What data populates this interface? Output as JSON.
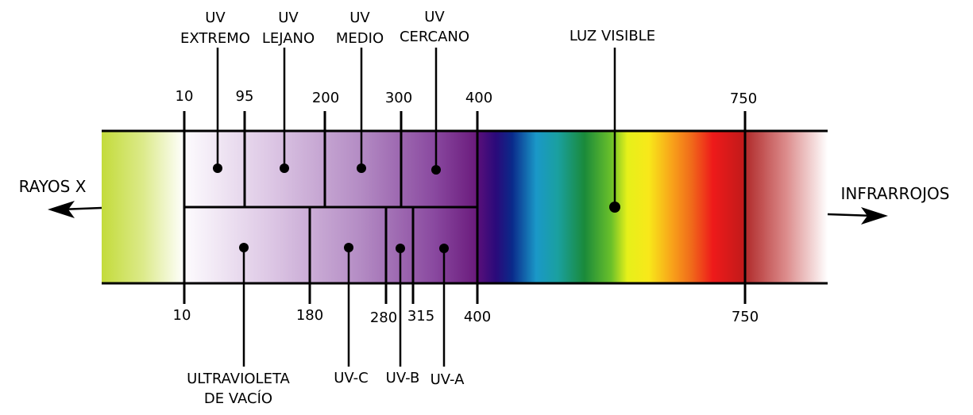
{
  "colors": {
    "xray": "#c4dc3c",
    "uv_start": "#fbf8fc",
    "uv_end": "#6a1a7e",
    "infrared": "#b22222"
  },
  "left_label": "RAYOS X",
  "right_label": "INFRARROJOS",
  "top_bands": [
    {
      "line1": "UV",
      "line2": "EXTREMO"
    },
    {
      "line1": "UV",
      "line2": "LEJANO"
    },
    {
      "line1": "UV",
      "line2": "MEDIO"
    },
    {
      "line1": "UV",
      "line2": "CERCANO"
    }
  ],
  "visible_label": "LUZ VISIBLE",
  "top_ticks": [
    "10",
    "95",
    "200",
    "300",
    "400",
    "750"
  ],
  "bottom_ticks": [
    "10",
    "180",
    "280",
    "315",
    "400",
    "750"
  ],
  "bottom_bands": [
    {
      "line1": "ULTRAVIOLETA",
      "line2": "DE VACÍO"
    },
    {
      "line1": "UV-C"
    },
    {
      "line1": "UV-B"
    },
    {
      "line1": "UV-A"
    }
  ]
}
